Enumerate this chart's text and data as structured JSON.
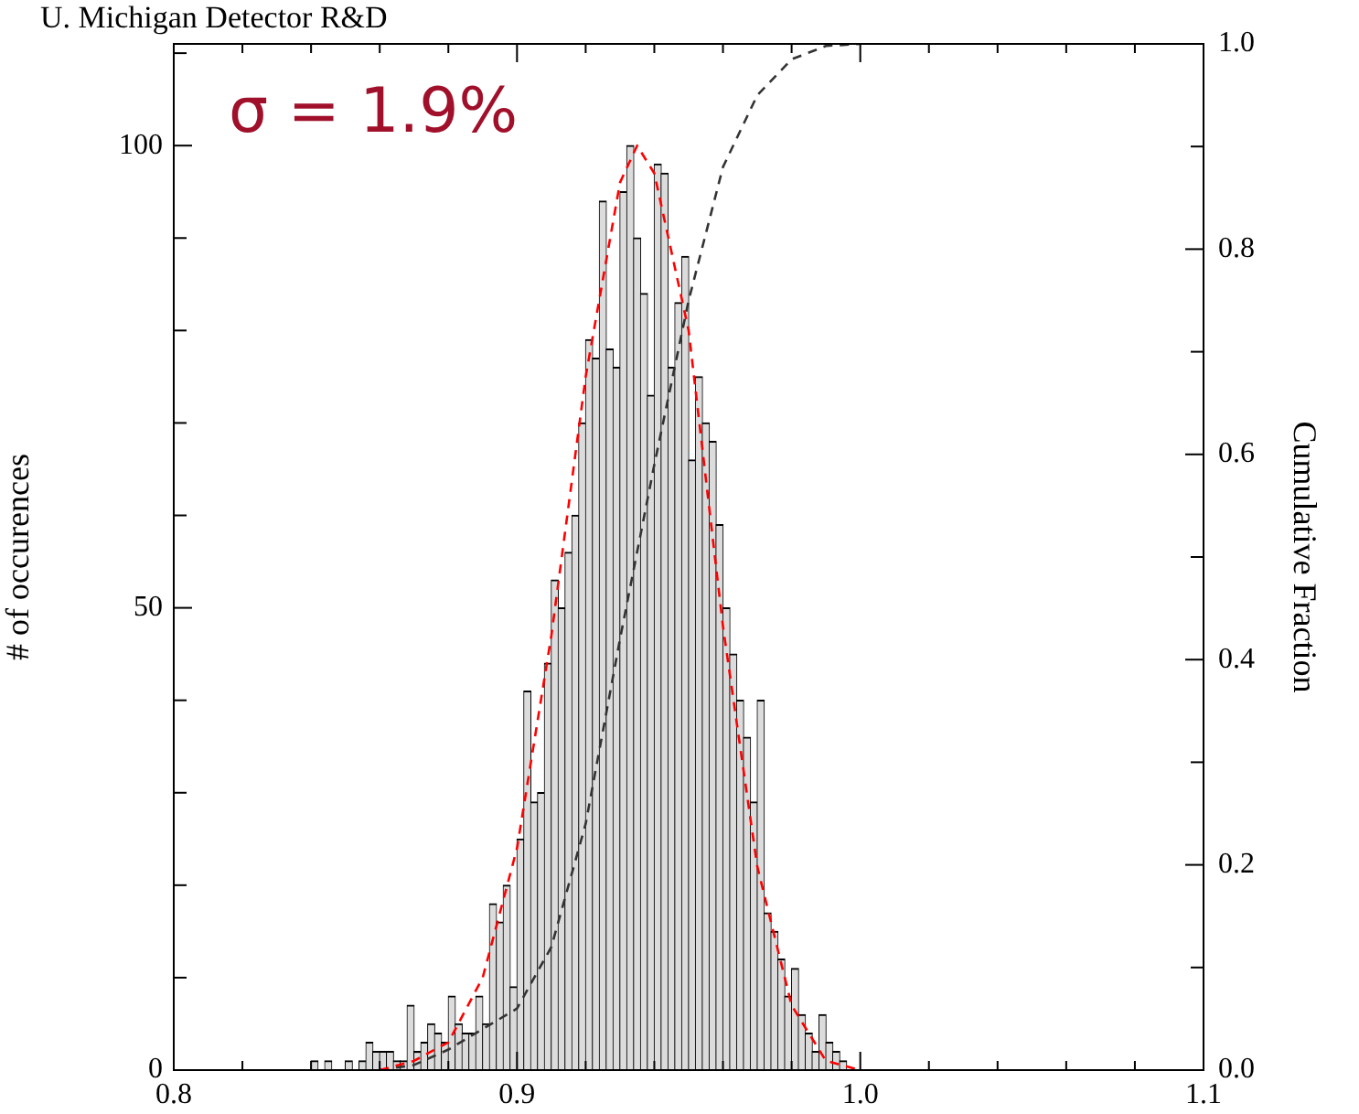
{
  "chart_data": {
    "type": "histogram",
    "title": "U. Michigan Detector R&D",
    "ylabel": "# of occurences",
    "y2label": "Cumulative Fraction",
    "annotations": [
      "σ = 1.9%"
    ],
    "series": [
      {
        "color": "#dcdcdc",
        "bins": [
          0.84,
          0.842,
          0.844,
          0.846,
          0.848,
          0.85,
          0.852,
          0.854,
          0.856,
          0.858,
          0.86,
          0.862,
          0.864,
          0.866,
          0.868,
          0.87,
          0.872,
          0.874,
          0.876,
          0.878,
          0.88,
          0.882,
          0.884,
          0.886,
          0.888,
          0.89,
          0.892,
          0.894,
          0.896,
          0.898,
          0.9,
          0.902,
          0.904,
          0.906,
          0.908,
          0.91,
          0.912,
          0.914,
          0.916,
          0.918,
          0.92,
          0.922,
          0.924,
          0.926,
          0.928,
          0.93,
          0.932,
          0.934,
          0.936,
          0.938,
          0.94,
          0.942,
          0.944,
          0.946,
          0.948,
          0.95,
          0.952,
          0.954,
          0.956,
          0.958,
          0.96,
          0.962,
          0.964,
          0.966,
          0.968,
          0.97,
          0.972,
          0.974,
          0.976,
          0.978,
          0.98,
          0.982,
          0.984,
          0.986,
          0.988,
          0.99,
          0.992,
          0.994,
          0.996
        ],
        "values": [
          1,
          0,
          1,
          0,
          0,
          1,
          0,
          1,
          3,
          2,
          2,
          2,
          1,
          1,
          7,
          2,
          3,
          5,
          4,
          3,
          8,
          5,
          4,
          4,
          8,
          5,
          18,
          16,
          20,
          9,
          25,
          41,
          29,
          30,
          44,
          53,
          50,
          56,
          60,
          70,
          79,
          77,
          94,
          78,
          76,
          95,
          100,
          90,
          84,
          73,
          98,
          97,
          76,
          83,
          88,
          66,
          75,
          70,
          68,
          59,
          50,
          45,
          40,
          36,
          29,
          40,
          17,
          15,
          12,
          8,
          11,
          6,
          4,
          2,
          6,
          3,
          2,
          1
        ]
      },
      {
        "type": "line",
        "color": "#ff0000",
        "line_style": "dashed",
        "x": [
          0.86,
          0.87,
          0.88,
          0.89,
          0.9,
          0.91,
          0.92,
          0.93,
          0.935,
          0.94,
          0.95,
          0.96,
          0.97,
          0.98,
          0.99,
          1.0
        ],
        "values": [
          0,
          1,
          3,
          10,
          24,
          47,
          75,
          96,
          100,
          97,
          80,
          48,
          22,
          7,
          1,
          0
        ]
      },
      {
        "type": "line",
        "axis": "y2",
        "color": "#333333",
        "line_style": "dashed",
        "x": [
          0.86,
          0.87,
          0.88,
          0.89,
          0.9,
          0.91,
          0.92,
          0.93,
          0.94,
          0.95,
          0.96,
          0.97,
          0.98,
          0.99,
          1.0
        ],
        "values": [
          0,
          0.005,
          0.02,
          0.04,
          0.06,
          0.12,
          0.24,
          0.42,
          0.59,
          0.75,
          0.88,
          0.95,
          0.985,
          0.998,
          1.0
        ]
      }
    ],
    "xlim": [
      0.8,
      1.1
    ],
    "xticks": [
      0.8,
      {
        "value": 0.82,
        "label": null
      },
      {
        "value": 0.84,
        "label": null
      },
      {
        "value": 0.86,
        "label": null
      },
      {
        "value": 0.88,
        "label": null
      },
      0.9,
      {
        "value": 0.92,
        "label": null
      },
      {
        "value": 0.94,
        "label": null
      },
      {
        "value": 0.96,
        "label": null
      },
      {
        "value": 0.98,
        "label": null
      },
      {
        "value": 1.0,
        "label": "1.0"
      },
      {
        "value": 1.02,
        "label": null
      },
      {
        "value": 1.04,
        "label": null
      },
      {
        "value": 1.06,
        "label": null
      },
      {
        "value": 1.08,
        "label": null
      },
      1.1
    ],
    "ylim": [
      0,
      111
    ],
    "yticks": [
      0,
      {
        "value": 10,
        "label": null
      },
      {
        "value": 20,
        "label": null
      },
      {
        "value": 30,
        "label": null
      },
      {
        "value": 40,
        "label": null
      },
      50,
      {
        "value": 60,
        "label": null
      },
      {
        "value": 70,
        "label": null
      },
      {
        "value": 80,
        "label": null
      },
      {
        "value": 90,
        "label": null
      },
      100,
      {
        "value": 110,
        "label": null
      }
    ],
    "y2lim": [
      0,
      1
    ],
    "y2ticks": [
      {
        "value": 0,
        "label": "0.0"
      },
      {
        "value": 0.1,
        "label": null
      },
      0.2,
      {
        "value": 0.3,
        "label": null
      },
      0.4,
      {
        "value": 0.5,
        "label": null
      },
      0.6,
      {
        "value": 0.7,
        "label": null
      },
      0.8,
      {
        "value": 0.9,
        "label": null
      },
      {
        "value": 1,
        "label": "1.0"
      }
    ],
    "grid": false,
    "legend": false,
    "marker": "none"
  }
}
